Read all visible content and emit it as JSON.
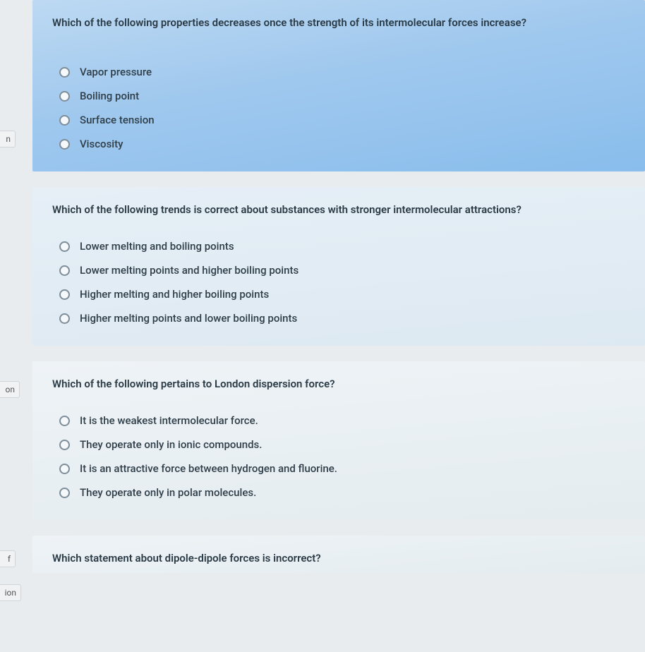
{
  "sidebar": {
    "tab1": "n",
    "tab2": "",
    "tab3": "on",
    "tab4": "f",
    "tab5": "ion"
  },
  "questions": [
    {
      "prompt": "Which of the following properties decreases once the strength of its intermolecular forces increase?",
      "options": [
        "Vapor pressure",
        "Boiling point",
        "Surface tension",
        "Viscosity"
      ]
    },
    {
      "prompt": "Which of the following trends is correct about substances with stronger intermolecular attractions?",
      "options": [
        "Lower melting and boiling points",
        "Lower melting points and higher boiling points",
        "Higher melting and higher boiling points",
        "Higher melting points and lower boiling points"
      ]
    },
    {
      "prompt": "Which of the following pertains to London dispersion force?",
      "options": [
        "It is the weakest intermolecular force.",
        "They operate only in ionic compounds.",
        "It is an attractive force between hydrogen and fluorine.",
        "They operate only in polar molecules."
      ]
    },
    {
      "prompt": "Which statement about dipole-dipole forces is incorrect?",
      "options": []
    }
  ],
  "colors": {
    "card_blue_from": "#bdd9f2",
    "card_blue_to": "#89bdec",
    "card_light_from": "#e6eff6",
    "card_light_to": "#dde9f2",
    "card_pale_from": "#eef3f6",
    "card_pale_to": "#e4ecf0",
    "background": "#e8ecef",
    "text_primary": "#2b3b46",
    "radio_border": "#7d8e9a"
  }
}
